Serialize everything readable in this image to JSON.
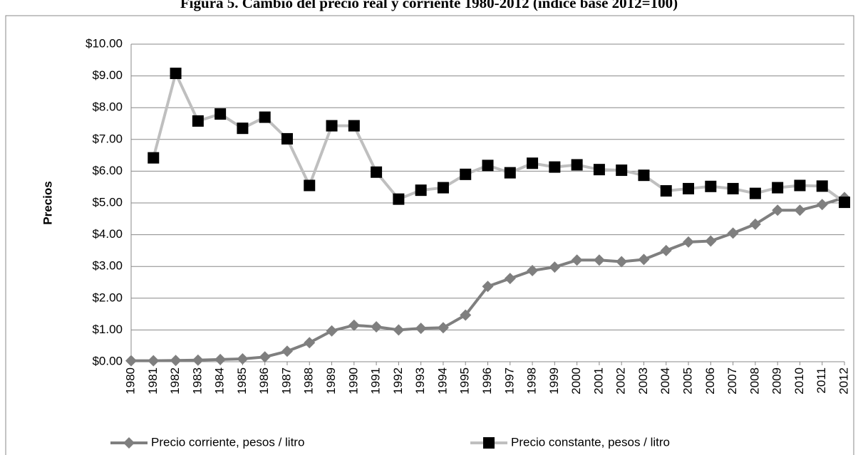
{
  "chart_data": {
    "type": "line",
    "title": "Figura 5. Cambio del precio real y corriente 1980-2012 (índice base 2012=100)",
    "y_label": "Precios",
    "categories": [
      "1980",
      "1981",
      "1982",
      "1983",
      "1984",
      "1985",
      "1986",
      "1987",
      "1988",
      "1989",
      "1990",
      "1991",
      "1992",
      "1993",
      "1994",
      "1995",
      "1996",
      "1997",
      "1998",
      "1999",
      "2000",
      "2001",
      "2002",
      "2003",
      "2004",
      "2005",
      "2006",
      "2007",
      "2008",
      "2009",
      "2010",
      "2011",
      "2012"
    ],
    "series": [
      {
        "name": "Precio corriente, pesos / litro",
        "color": "#7f7f7f",
        "marker": "diamond",
        "marker_color": "#7f7f7f",
        "values": [
          0.03,
          0.03,
          0.04,
          0.05,
          0.07,
          0.09,
          0.15,
          0.33,
          0.6,
          0.97,
          1.15,
          1.1,
          1.0,
          1.05,
          1.07,
          1.47,
          2.37,
          2.62,
          2.87,
          2.98,
          3.2,
          3.2,
          3.15,
          3.22,
          3.5,
          3.77,
          3.8,
          4.05,
          4.33,
          4.77,
          4.77,
          4.95,
          5.17
        ]
      },
      {
        "name": "Precio constante, pesos / litro",
        "color": "#bfbfbf",
        "marker": "square",
        "marker_color": "#000000",
        "values": [
          null,
          6.42,
          9.08,
          7.58,
          7.8,
          7.35,
          7.7,
          7.02,
          5.55,
          7.43,
          7.43,
          5.97,
          5.12,
          5.4,
          5.48,
          5.9,
          6.18,
          5.95,
          6.25,
          6.13,
          6.2,
          6.05,
          6.03,
          5.87,
          5.38,
          5.45,
          5.52,
          5.45,
          5.3,
          5.48,
          5.55,
          5.53,
          5.02
        ]
      }
    ],
    "ylim": [
      0,
      10
    ],
    "yticks": [
      {
        "value": 0,
        "label": "$0.00"
      },
      {
        "value": 1,
        "label": "$1.00"
      },
      {
        "value": 2,
        "label": "$2.00"
      },
      {
        "value": 3,
        "label": "$3.00"
      },
      {
        "value": 4,
        "label": "$4.00"
      },
      {
        "value": 5,
        "label": "$5.00"
      },
      {
        "value": 6,
        "label": "$6.00"
      },
      {
        "value": 7,
        "label": "$7.00"
      },
      {
        "value": 8,
        "label": "$8.00"
      },
      {
        "value": 9,
        "label": "$9.00"
      },
      {
        "value": 10,
        "label": "$10.00"
      }
    ],
    "grid": true,
    "legend": "bottom"
  }
}
